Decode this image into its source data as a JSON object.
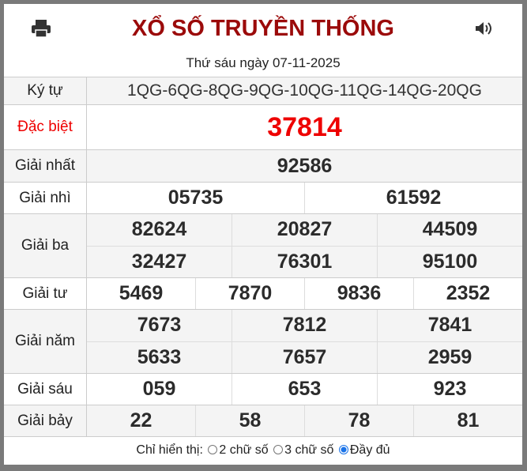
{
  "header": {
    "title": "XỔ SỐ TRUYỀN THỐNG",
    "date": "Thứ sáu ngày 07-11-2025",
    "print_icon": "print-icon",
    "sound_icon": "speaker-icon"
  },
  "rows": {
    "kytu": {
      "label": "Ký tự",
      "value": "1QG-6QG-8QG-9QG-10QG-11QG-14QG-20QG"
    },
    "db": {
      "label": "Đặc biệt",
      "value": "37814"
    },
    "g1": {
      "label": "Giải nhất",
      "values": [
        "92586"
      ]
    },
    "g2": {
      "label": "Giải nhì",
      "values": [
        "05735",
        "61592"
      ]
    },
    "g3": {
      "label": "Giải ba",
      "values": [
        "82624",
        "20827",
        "44509",
        "32427",
        "76301",
        "95100"
      ]
    },
    "g4": {
      "label": "Giải tư",
      "values": [
        "5469",
        "7870",
        "9836",
        "2352"
      ]
    },
    "g5": {
      "label": "Giải năm",
      "values": [
        "7673",
        "7812",
        "7841",
        "5633",
        "7657",
        "2959"
      ]
    },
    "g6": {
      "label": "Giải sáu",
      "values": [
        "059",
        "653",
        "923"
      ]
    },
    "g7": {
      "label": "Giải bảy",
      "values": [
        "22",
        "58",
        "78",
        "81"
      ]
    }
  },
  "footer": {
    "label": "Chỉ hiển thị:",
    "options": [
      "2 chữ số",
      "3 chữ số",
      "Đầy đủ"
    ],
    "selected": "Đầy đủ"
  },
  "colors": {
    "title": "#9b0a0a",
    "special": "#ee0000",
    "radio_selected": "#1a73e8"
  }
}
